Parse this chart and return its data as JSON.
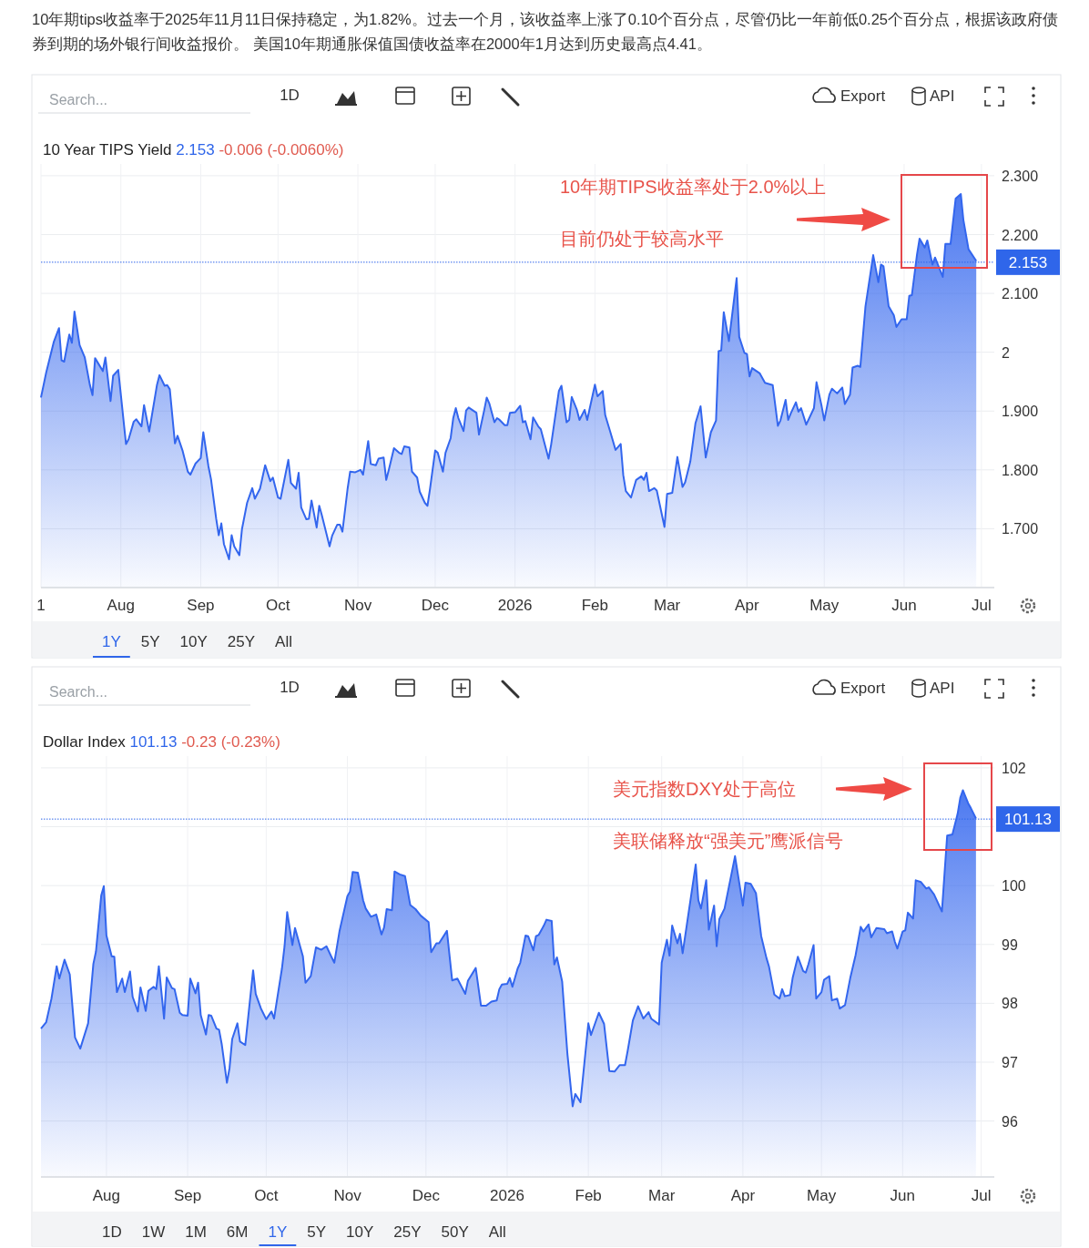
{
  "chart_data": [
    {
      "type": "area",
      "title": "10 Year TIPS Yield",
      "subtitle": "2.153 -0.006 (-0.0060%)",
      "color": "#3366ee",
      "grid": true,
      "xlim": [
        "2025-07-01",
        "2026-07-06"
      ],
      "xticks": [
        {
          "value": "2025-07-01",
          "label": "1"
        },
        {
          "value": "2025-08-01",
          "label": "Aug"
        },
        {
          "value": "2025-09-01",
          "label": "Sep"
        },
        {
          "value": "2025-10-01",
          "label": "Oct"
        },
        {
          "value": "2025-11-01",
          "label": "Nov"
        },
        {
          "value": "2025-12-01",
          "label": "Dec"
        },
        {
          "value": "2026-01-01",
          "label": "2026"
        },
        {
          "value": "2026-02-01",
          "label": "Feb"
        },
        {
          "value": "2026-03-01",
          "label": "Mar"
        },
        {
          "value": "2026-04-01",
          "label": "Apr"
        },
        {
          "value": "2026-05-01",
          "label": "May"
        },
        {
          "value": "2026-06-01",
          "label": "Jun"
        },
        {
          "value": "2026-07-01",
          "label": "Jul"
        }
      ],
      "ylim": [
        1.6,
        2.32
      ],
      "yticks": [
        {
          "value": 1.7,
          "label": "1.700"
        },
        {
          "value": 1.8,
          "label": "1.800"
        },
        {
          "value": 1.9,
          "label": "1.900"
        },
        2,
        {
          "value": 2.1,
          "label": "2.100"
        },
        {
          "value": 2.2,
          "label": "2.200"
        },
        {
          "value": 2.3,
          "label": "2.300"
        }
      ],
      "ref_lines": [
        {
          "axis": "y",
          "value": 2.153,
          "label": "2.153",
          "color": "#2f66ea",
          "line_style": "dotted"
        }
      ],
      "x": [
        "2025-07-01",
        "2025-07-03",
        "2025-07-06",
        "2025-07-08",
        "2025-07-09",
        "2025-07-10",
        "2025-07-12",
        "2025-07-13",
        "2025-07-14",
        "2025-07-16",
        "2025-07-18",
        "2025-07-20",
        "2025-07-21",
        "2025-07-22",
        "2025-07-25",
        "2025-07-26",
        "2025-07-28",
        "2025-07-29",
        "2025-07-31",
        "2025-08-03",
        "2025-08-04",
        "2025-08-06",
        "2025-08-07",
        "2025-08-09",
        "2025-08-10",
        "2025-08-12",
        "2025-08-15",
        "2025-08-16",
        "2025-08-18",
        "2025-08-19",
        "2025-08-20",
        "2025-08-22",
        "2025-08-23",
        "2025-08-25",
        "2025-08-27",
        "2025-08-28",
        "2025-08-30",
        "2025-09-01",
        "2025-09-02",
        "2025-09-04",
        "2025-09-05",
        "2025-09-07",
        "2025-09-08",
        "2025-09-09",
        "2025-09-10",
        "2025-09-12",
        "2025-09-13",
        "2025-09-14",
        "2025-09-16",
        "2025-09-17",
        "2025-09-19",
        "2025-09-21",
        "2025-09-22",
        "2025-09-24",
        "2025-09-26",
        "2025-09-28",
        "2025-09-29",
        "2025-10-01",
        "2025-10-02",
        "2025-10-05",
        "2025-10-06",
        "2025-10-08",
        "2025-10-09",
        "2025-10-10",
        "2025-10-12",
        "2025-10-13",
        "2025-10-14",
        "2025-10-16",
        "2025-10-17",
        "2025-10-18",
        "2025-10-20",
        "2025-10-21",
        "2025-10-22",
        "2025-10-24",
        "2025-10-25",
        "2025-10-26",
        "2025-10-28",
        "2025-10-29",
        "2025-10-31",
        "2025-11-02",
        "2025-11-03",
        "2025-11-05",
        "2025-11-06",
        "2025-11-08",
        "2025-11-09",
        "2025-11-11",
        "2025-11-12",
        "2025-11-13",
        "2025-11-15",
        "2025-11-17",
        "2025-11-18",
        "2025-11-19",
        "2025-11-21",
        "2025-11-22",
        "2025-11-24",
        "2025-11-25",
        "2025-11-27",
        "2025-11-28",
        "2025-11-29",
        "2025-12-01",
        "2025-12-02",
        "2025-12-04",
        "2025-12-05",
        "2025-12-07",
        "2025-12-08",
        "2025-12-09",
        "2025-12-10",
        "2025-12-12",
        "2025-12-13",
        "2025-12-14",
        "2025-12-17",
        "2025-12-18",
        "2025-12-20",
        "2025-12-21",
        "2025-12-22",
        "2025-12-24",
        "2025-12-25",
        "2025-12-26",
        "2025-12-28",
        "2025-12-29",
        "2025-12-30",
        "2026-01-01",
        "2026-01-03",
        "2026-01-04",
        "2026-01-05",
        "2026-01-07",
        "2026-01-08",
        "2026-01-10",
        "2026-01-11",
        "2026-01-14",
        "2026-01-15",
        "2026-01-18",
        "2026-01-19",
        "2026-01-21",
        "2026-01-22",
        "2026-01-23",
        "2026-01-25",
        "2026-01-26",
        "2026-01-28",
        "2026-01-29",
        "2026-02-01",
        "2026-02-02",
        "2026-02-04",
        "2026-02-05",
        "2026-02-07",
        "2026-02-09",
        "2026-02-11",
        "2026-02-12",
        "2026-02-13",
        "2026-02-15",
        "2026-02-17",
        "2026-02-19",
        "2026-02-20",
        "2026-02-21",
        "2026-02-22",
        "2026-02-24",
        "2026-02-25",
        "2026-02-28",
        "2026-03-01",
        "2026-03-03",
        "2026-03-05",
        "2026-03-07",
        "2026-03-08",
        "2026-03-10",
        "2026-03-12",
        "2026-03-14",
        "2026-03-16",
        "2026-03-18",
        "2026-03-20",
        "2026-03-21",
        "2026-03-22",
        "2026-03-23",
        "2026-03-25",
        "2026-03-28",
        "2026-03-29",
        "2026-03-31",
        "2026-04-01",
        "2026-04-02",
        "2026-04-03",
        "2026-04-06",
        "2026-04-08",
        "2026-04-11",
        "2026-04-13",
        "2026-04-14",
        "2026-04-16",
        "2026-04-17",
        "2026-04-18",
        "2026-04-20",
        "2026-04-21",
        "2026-04-22",
        "2026-04-24",
        "2026-04-27",
        "2026-04-28",
        "2026-04-30",
        "2026-05-01",
        "2026-05-03",
        "2026-05-04",
        "2026-05-06",
        "2026-05-08",
        "2026-05-09",
        "2026-05-11",
        "2026-05-12",
        "2026-05-14",
        "2026-05-15",
        "2026-05-17",
        "2026-05-20",
        "2026-05-22",
        "2026-05-23",
        "2026-05-24",
        "2026-05-26",
        "2026-05-28",
        "2026-05-29",
        "2026-05-31",
        "2026-06-02",
        "2026-06-03",
        "2026-06-04",
        "2026-06-06",
        "2026-06-07",
        "2026-06-09",
        "2026-06-10",
        "2026-06-12",
        "2026-06-13",
        "2026-06-16",
        "2026-06-17",
        "2026-06-19",
        "2026-06-21",
        "2026-06-23",
        "2026-06-24",
        "2026-06-26",
        "2026-06-29"
      ],
      "values": [
        1.923,
        1.965,
        2.018,
        2.041,
        1.986,
        1.984,
        2.03,
        2.016,
        2.069,
        2.012,
        1.991,
        1.944,
        1.927,
        1.99,
        1.968,
        1.991,
        1.917,
        1.96,
        1.97,
        1.844,
        1.852,
        1.882,
        1.886,
        1.874,
        1.91,
        1.865,
        1.944,
        1.961,
        1.943,
        1.944,
        1.937,
        1.845,
        1.858,
        1.832,
        1.797,
        1.792,
        1.811,
        1.82,
        1.864,
        1.806,
        1.784,
        1.717,
        1.689,
        1.709,
        1.674,
        1.648,
        1.689,
        1.67,
        1.655,
        1.699,
        1.744,
        1.769,
        1.751,
        1.768,
        1.808,
        1.781,
        1.787,
        1.753,
        1.751,
        1.817,
        1.778,
        1.768,
        1.795,
        1.736,
        1.716,
        1.717,
        1.748,
        1.702,
        1.739,
        1.723,
        1.688,
        1.67,
        1.688,
        1.707,
        1.707,
        1.695,
        1.768,
        1.797,
        1.796,
        1.8,
        1.792,
        1.849,
        1.81,
        1.808,
        1.819,
        1.821,
        1.783,
        1.8,
        1.837,
        1.829,
        1.827,
        1.84,
        1.838,
        1.797,
        1.787,
        1.763,
        1.744,
        1.739,
        1.768,
        1.833,
        1.829,
        1.797,
        1.829,
        1.854,
        1.888,
        1.905,
        1.888,
        1.866,
        1.901,
        1.906,
        1.897,
        1.86,
        1.901,
        1.923,
        1.913,
        1.881,
        1.888,
        1.885,
        1.876,
        1.876,
        1.897,
        1.898,
        1.909,
        1.881,
        1.883,
        1.852,
        1.889,
        1.874,
        1.869,
        1.819,
        1.843,
        1.934,
        1.943,
        1.881,
        1.885,
        1.924,
        1.902,
        1.885,
        1.902,
        1.885,
        1.945,
        1.925,
        1.934,
        1.893,
        1.864,
        1.834,
        1.844,
        1.791,
        1.764,
        1.753,
        1.783,
        1.789,
        1.783,
        1.795,
        1.764,
        1.769,
        1.765,
        1.703,
        1.759,
        1.761,
        1.822,
        1.771,
        1.779,
        1.814,
        1.879,
        1.908,
        1.821,
        1.864,
        1.884,
        2.002,
        2.003,
        2.068,
        2.019,
        2.126,
        2.026,
        1.999,
        1.997,
        1.959,
        1.973,
        1.964,
        1.948,
        1.944,
        1.875,
        1.884,
        1.919,
        1.885,
        1.896,
        1.915,
        1.899,
        1.905,
        1.877,
        1.905,
        1.949,
        1.908,
        1.884,
        1.928,
        1.938,
        1.93,
        1.94,
        1.912,
        1.928,
        1.974,
        1.977,
        1.975,
        2.078,
        2.165,
        2.119,
        2.149,
        2.146,
        2.078,
        2.063,
        2.043,
        2.056,
        2.056,
        2.096,
        2.097,
        2.166,
        2.193,
        2.178,
        2.19,
        2.149,
        2.161,
        2.128,
        2.184,
        2.184,
        2.261,
        2.269,
        2.225,
        2.175,
        2.155
      ],
      "annotations": [
        "10年期tips收益率于2025年11月11日保持稳定，为1.82%。过去一个月，该收益率上涨了0.10个百分点，尽管仍比一年前低0.25个百分点，根据该政府债券到期的场外银行间收益报价。 美国10年期通胀保值国债收益率在2000年1月达到历史最高点4.41。",
        "10年期TIPS收益率处于2.0%以上",
        "目前仍处于较高水平",
        "Search...",
        "1D",
        "Export",
        "API",
        "1Y",
        "5Y",
        "10Y",
        "25Y",
        "All"
      ]
    },
    {
      "type": "area",
      "title": "Dollar Index",
      "subtitle": "101.13 -0.23 (-0.23%)",
      "color": "#3366ee",
      "grid": true,
      "xlim": [
        "2025-07-07",
        "2026-07-06"
      ],
      "xticks": [
        {
          "value": "2025-08-01",
          "label": "Aug"
        },
        {
          "value": "2025-09-01",
          "label": "Sep"
        },
        {
          "value": "2025-10-01",
          "label": "Oct"
        },
        {
          "value": "2025-11-01",
          "label": "Nov"
        },
        {
          "value": "2025-12-01",
          "label": "Dec"
        },
        {
          "value": "2026-01-01",
          "label": "2026"
        },
        {
          "value": "2026-02-01",
          "label": "Feb"
        },
        {
          "value": "2026-03-01",
          "label": "Mar"
        },
        {
          "value": "2026-04-01",
          "label": "Apr"
        },
        {
          "value": "2026-05-01",
          "label": "May"
        },
        {
          "value": "2026-06-01",
          "label": "Jun"
        },
        {
          "value": "2026-07-01",
          "label": "Jul"
        }
      ],
      "ylim": [
        95.05,
        102.2
      ],
      "yticks": [
        96,
        97,
        98,
        99,
        100,
        {
          "value": 101,
          "label": null
        },
        102
      ],
      "ref_lines": [
        {
          "axis": "y",
          "value": 101.13,
          "label": "101.13",
          "color": "#2f66ea",
          "line_style": "dotted"
        }
      ],
      "x": [
        "2025-07-07",
        "2025-07-09",
        "2025-07-11",
        "2025-07-13",
        "2025-07-14",
        "2025-07-16",
        "2025-07-18",
        "2025-07-20",
        "2025-07-22",
        "2025-07-25",
        "2025-07-27",
        "2025-07-28",
        "2025-07-30",
        "2025-07-31",
        "2025-08-01",
        "2025-08-03",
        "2025-08-04",
        "2025-08-05",
        "2025-08-07",
        "2025-08-08",
        "2025-08-10",
        "2025-08-11",
        "2025-08-13",
        "2025-08-14",
        "2025-08-16",
        "2025-08-17",
        "2025-08-19",
        "2025-08-20",
        "2025-08-21",
        "2025-08-23",
        "2025-08-24",
        "2025-08-26",
        "2025-08-27",
        "2025-08-29",
        "2025-08-30",
        "2025-09-01",
        "2025-09-02",
        "2025-09-04",
        "2025-09-05",
        "2025-09-06",
        "2025-09-08",
        "2025-09-09",
        "2025-09-10",
        "2025-09-12",
        "2025-09-13",
        "2025-09-14",
        "2025-09-16",
        "2025-09-17",
        "2025-09-18",
        "2025-09-20",
        "2025-09-21",
        "2025-09-23",
        "2025-09-26",
        "2025-09-27",
        "2025-09-29",
        "2025-10-01",
        "2025-10-03",
        "2025-10-04",
        "2025-10-07",
        "2025-10-08",
        "2025-10-09",
        "2025-10-11",
        "2025-10-12",
        "2025-10-15",
        "2025-10-16",
        "2025-10-18",
        "2025-10-20",
        "2025-10-22",
        "2025-10-24",
        "2025-10-26",
        "2025-10-27",
        "2025-10-29",
        "2025-11-01",
        "2025-11-02",
        "2025-11-03",
        "2025-11-05",
        "2025-11-07",
        "2025-11-08",
        "2025-11-10",
        "2025-11-12",
        "2025-11-14",
        "2025-11-15",
        "2025-11-16",
        "2025-11-18",
        "2025-11-19",
        "2025-11-21",
        "2025-11-23",
        "2025-11-25",
        "2025-11-27",
        "2025-11-29",
        "2025-12-02",
        "2025-12-03",
        "2025-12-05",
        "2025-12-06",
        "2025-12-09",
        "2025-12-11",
        "2025-12-13",
        "2025-12-16",
        "2025-12-17",
        "2025-12-20",
        "2025-12-22",
        "2025-12-24",
        "2025-12-26",
        "2025-12-28",
        "2025-12-29",
        "2025-12-30",
        "2026-01-01",
        "2026-01-02",
        "2026-01-03",
        "2026-01-05",
        "2026-01-06",
        "2026-01-08",
        "2026-01-09",
        "2026-01-11",
        "2026-01-12",
        "2026-01-13",
        "2026-01-15",
        "2026-01-16",
        "2026-01-18",
        "2026-01-19",
        "2026-01-20",
        "2026-01-22",
        "2026-01-24",
        "2026-01-26",
        "2026-01-27",
        "2026-01-29",
        "2026-02-01",
        "2026-02-02",
        "2026-02-05",
        "2026-02-07",
        "2026-02-09",
        "2026-02-11",
        "2026-02-13",
        "2026-02-15",
        "2026-02-16",
        "2026-02-18",
        "2026-02-20",
        "2026-02-22",
        "2026-02-24",
        "2026-02-25",
        "2026-02-28",
        "2026-03-01",
        "2026-03-03",
        "2026-03-04",
        "2026-03-05",
        "2026-03-07",
        "2026-03-08",
        "2026-03-09",
        "2026-03-14",
        "2026-03-15",
        "2026-03-16",
        "2026-03-18",
        "2026-03-19",
        "2026-03-21",
        "2026-03-22",
        "2026-03-23",
        "2026-03-25",
        "2026-03-29",
        "2026-04-01",
        "2026-04-02",
        "2026-04-04",
        "2026-04-06",
        "2026-04-08",
        "2026-04-10",
        "2026-04-11",
        "2026-04-13",
        "2026-04-15",
        "2026-04-16",
        "2026-04-17",
        "2026-04-19",
        "2026-04-20",
        "2026-04-22",
        "2026-04-24",
        "2026-04-25",
        "2026-04-26",
        "2026-04-28",
        "2026-04-29",
        "2026-05-01",
        "2026-05-02",
        "2026-05-04",
        "2026-05-05",
        "2026-05-07",
        "2026-05-08",
        "2026-05-10",
        "2026-05-12",
        "2026-05-14",
        "2026-05-16",
        "2026-05-17",
        "2026-05-19",
        "2026-05-20",
        "2026-05-22",
        "2026-05-25",
        "2026-05-26",
        "2026-05-28",
        "2026-05-29",
        "2026-05-30",
        "2026-06-01",
        "2026-06-02",
        "2026-06-03",
        "2026-06-05",
        "2026-06-06",
        "2026-06-08",
        "2026-06-10",
        "2026-06-11",
        "2026-06-13",
        "2026-06-16",
        "2026-06-17",
        "2026-06-18",
        "2026-06-20",
        "2026-06-22",
        "2026-06-23",
        "2026-06-24",
        "2026-06-26",
        "2026-06-27",
        "2026-06-29"
      ],
      "values": [
        97.57,
        97.68,
        98.08,
        98.63,
        98.42,
        98.74,
        98.49,
        97.42,
        97.23,
        97.66,
        98.67,
        98.88,
        99.83,
        99.99,
        99.15,
        98.8,
        98.79,
        98.19,
        98.42,
        98.19,
        98.54,
        98.11,
        97.86,
        98.27,
        97.87,
        98.21,
        98.28,
        98.24,
        98.63,
        97.74,
        98.44,
        98.26,
        98.24,
        97.84,
        97.8,
        97.79,
        98.42,
        98.17,
        98.35,
        97.8,
        97.47,
        97.8,
        97.79,
        97.57,
        97.55,
        97.31,
        96.65,
        96.9,
        97.39,
        97.66,
        97.35,
        97.29,
        98.56,
        98.16,
        97.91,
        97.73,
        97.86,
        97.74,
        98.59,
        98.97,
        99.55,
        98.99,
        99.28,
        98.8,
        98.35,
        98.46,
        98.95,
        98.91,
        98.97,
        98.78,
        98.69,
        99.23,
        99.82,
        99.9,
        100.23,
        100.22,
        99.75,
        99.61,
        99.47,
        99.51,
        99.17,
        99.29,
        99.6,
        99.58,
        100.24,
        100.19,
        100.16,
        99.67,
        99.6,
        99.49,
        99.38,
        98.87,
        99.02,
        99.02,
        99.23,
        98.39,
        98.42,
        98.16,
        98.38,
        98.6,
        97.96,
        97.96,
        98.03,
        98.05,
        98.24,
        98.32,
        98.33,
        98.43,
        98.28,
        98.59,
        98.69,
        99.15,
        99.14,
        98.9,
        99.14,
        99.16,
        99.32,
        99.42,
        99.4,
        98.66,
        98.78,
        98.37,
        97.14,
        96.25,
        96.46,
        96.32,
        97.66,
        97.46,
        97.84,
        97.65,
        96.85,
        96.84,
        96.95,
        96.95,
        97.19,
        97.71,
        97.95,
        97.74,
        97.85,
        97.74,
        97.64,
        98.69,
        99.08,
        98.81,
        99.32,
        99.02,
        99.18,
        98.85,
        100.36,
        99.75,
        99.61,
        100.09,
        99.25,
        99.66,
        98.97,
        99.43,
        99.61,
        100.5,
        99.66,
        100.05,
        100.03,
        99.87,
        99.14,
        98.77,
        98.62,
        98.15,
        98.08,
        98.24,
        98.12,
        98.14,
        98.43,
        98.79,
        98.55,
        98.52,
        98.66,
        98.99,
        98.08,
        98.19,
        98.4,
        98.46,
        98.05,
        98.08,
        97.91,
        97.97,
        98.43,
        98.81,
        99.3,
        99.22,
        99.34,
        99.12,
        99.28,
        99.26,
        99.19,
        99.22,
        99.05,
        98.93,
        99.22,
        99.24,
        99.54,
        99.44,
        100.09,
        100.06,
        99.95,
        99.97,
        99.85,
        99.56,
        100.21,
        100.85,
        100.87,
        101.22,
        101.49,
        101.62,
        101.4,
        101.32,
        101.14
      ],
      "annotations": [
        "美元指数DXY处于高位",
        "美联储释放“强美元”鹰派信号",
        "Search...",
        "1D",
        "Export",
        "API",
        "1D",
        "1W",
        "1M",
        "6M",
        "1Y",
        "5Y",
        "10Y",
        "25Y",
        "50Y",
        "All"
      ]
    }
  ]
}
